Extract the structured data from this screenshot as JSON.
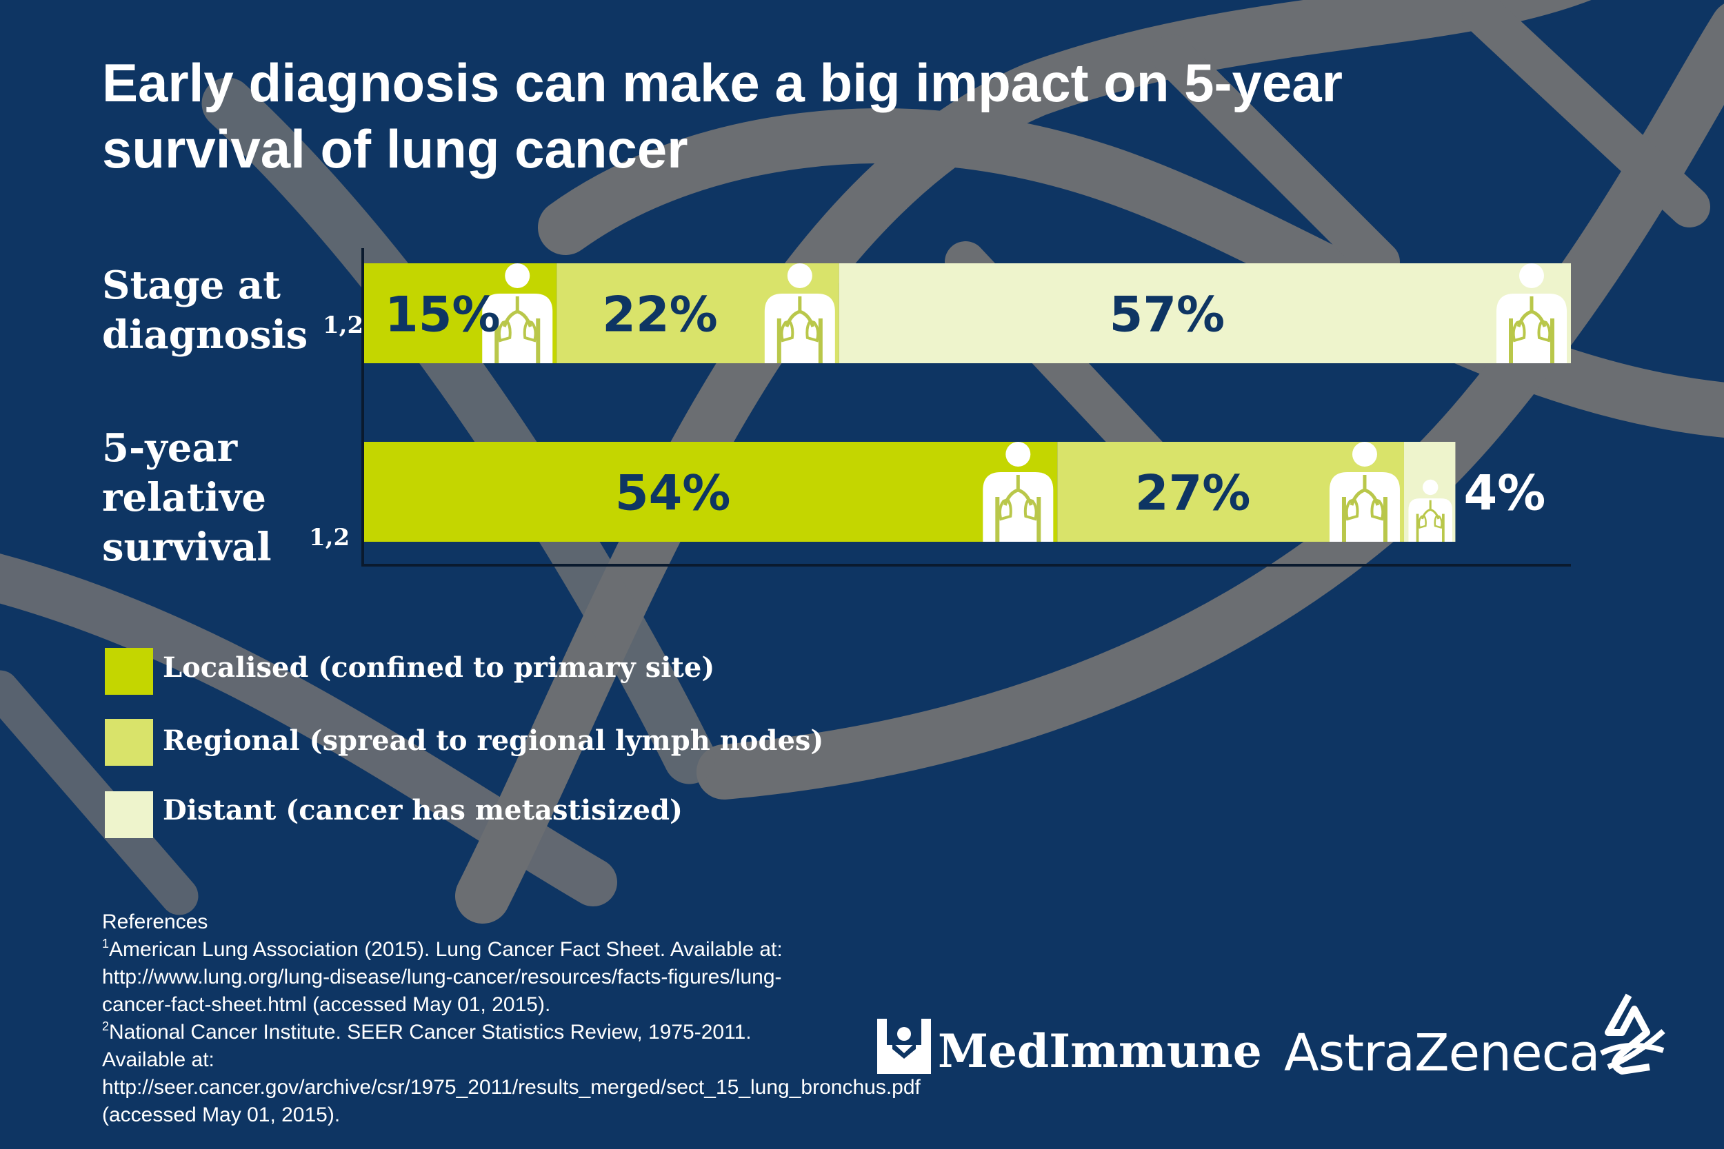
{
  "title": "Early diagnosis can make a big impact on 5-year survival of lung cancer",
  "colors": {
    "background": "#0e3563",
    "localised": "#c4d600",
    "regional": "#d9e36a",
    "distant": "#eef4cc",
    "text_dark": "#0e3563",
    "dna": "#6b6e72"
  },
  "rows": [
    {
      "label": "Stage at diagnosis",
      "sup": "1,2"
    },
    {
      "label": "5-year relative survival",
      "sup": "1,2"
    }
  ],
  "chart_data": {
    "type": "bar",
    "orientation": "horizontal",
    "stacked": true,
    "categories": [
      "Stage at diagnosis",
      "5-year relative survival"
    ],
    "series": [
      {
        "name": "Localised (confined to primary site)",
        "values": [
          15,
          54
        ],
        "labels": [
          "15%",
          "54%"
        ]
      },
      {
        "name": "Regional (spread to regional lymph nodes)",
        "values": [
          22,
          27
        ],
        "labels": [
          "22%",
          "27%"
        ]
      },
      {
        "name": "Distant (cancer has metastisized)",
        "values": [
          57,
          4
        ],
        "labels": [
          "57%",
          "4%"
        ]
      }
    ],
    "xlim": [
      0,
      94
    ],
    "grid": false,
    "legend": "bottom-left"
  },
  "legend": [
    {
      "label": "Localised (confined to primary site)",
      "color": "#c4d600"
    },
    {
      "label": "Regional (spread to regional lymph nodes)",
      "color": "#d9e36a"
    },
    {
      "label": "Distant (cancer has metastisized)",
      "color": "#eef4cc"
    }
  ],
  "references": {
    "heading": "References",
    "items": [
      {
        "num": "1",
        "text": "American Lung Association (2015). Lung Cancer Fact Sheet. Available at: http://www.lung.org/lung-disease/lung-cancer/resources/facts-figures/lung-cancer-fact-sheet.html (accessed May 01, 2015)."
      },
      {
        "num": "2",
        "text": "National Cancer Institute. SEER Cancer Statistics Review, 1975-2011. Available at: http://seer.cancer.gov/archive/csr/1975_2011/results_merged/sect_15_lung_bronchus.pdf (accessed May 01, 2015)."
      }
    ]
  },
  "logos": {
    "medimmune": "MedImmune",
    "astrazeneca": "AstraZeneca"
  }
}
